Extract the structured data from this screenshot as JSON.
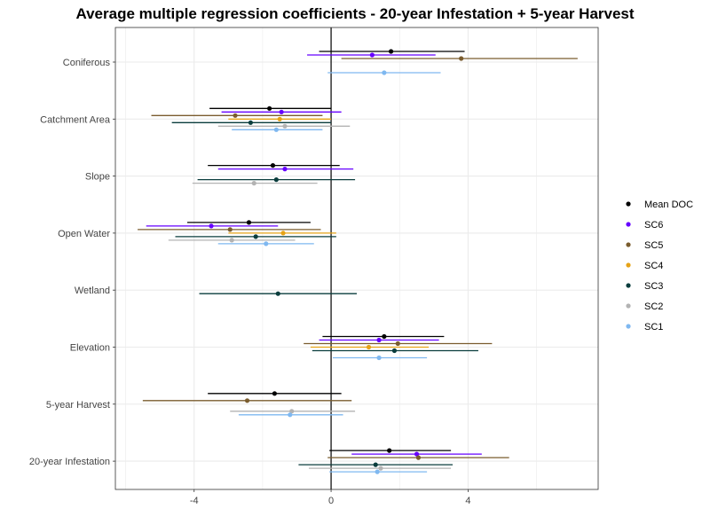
{
  "chart_data": {
    "type": "scatter",
    "title": "Average multiple regression coefficients - 20-year Infestation + 5-year Harvest",
    "xlabel": "",
    "ylabel": "",
    "xlim": [
      -6.3,
      7.8
    ],
    "x_ticks": [
      -4,
      0,
      4
    ],
    "x_tick_labels": [
      "-4",
      "0",
      "4"
    ],
    "grid": true,
    "legend_position": "right",
    "categories": [
      "Coniferous",
      "Catchment Area",
      "Slope",
      "Open Water",
      "Wetland",
      "Elevation",
      "5-year Harvest",
      "20-year Infestation"
    ],
    "series": [
      {
        "name": "Mean DOC",
        "color": "#000000",
        "points": [
          {
            "category": "Coniferous",
            "estimate": 1.75,
            "low": -0.35,
            "high": 3.9
          },
          {
            "category": "Catchment Area",
            "estimate": -1.8,
            "low": -3.55,
            "high": 0.0
          },
          {
            "category": "Slope",
            "estimate": -1.7,
            "low": -3.6,
            "high": 0.25
          },
          {
            "category": "Open Water",
            "estimate": -2.4,
            "low": -4.2,
            "high": -0.6
          },
          {
            "category": "Elevation",
            "estimate": 1.55,
            "low": -0.25,
            "high": 3.3
          },
          {
            "category": "5-year Harvest",
            "estimate": -1.65,
            "low": -3.6,
            "high": 0.3
          },
          {
            "category": "20-year Infestation",
            "estimate": 1.7,
            "low": -0.05,
            "high": 3.5
          }
        ]
      },
      {
        "name": "SC6",
        "color": "#6600ff",
        "points": [
          {
            "category": "Coniferous",
            "estimate": 1.2,
            "low": -0.7,
            "high": 3.05
          },
          {
            "category": "Catchment Area",
            "estimate": -1.45,
            "low": -3.2,
            "high": 0.3
          },
          {
            "category": "Slope",
            "estimate": -1.35,
            "low": -3.3,
            "high": 0.65
          },
          {
            "category": "Open Water",
            "estimate": -3.5,
            "low": -5.4,
            "high": -1.55
          },
          {
            "category": "Elevation",
            "estimate": 1.4,
            "low": -0.35,
            "high": 3.15
          },
          {
            "category": "20-year Infestation",
            "estimate": 2.5,
            "low": 0.6,
            "high": 4.4
          }
        ]
      },
      {
        "name": "SC5",
        "color": "#7a5c2e",
        "points": [
          {
            "category": "Coniferous",
            "estimate": 3.8,
            "low": 0.3,
            "high": 7.2
          },
          {
            "category": "Catchment Area",
            "estimate": -2.8,
            "low": -5.25,
            "high": -0.25
          },
          {
            "category": "Open Water",
            "estimate": -2.95,
            "low": -5.65,
            "high": -0.3
          },
          {
            "category": "Elevation",
            "estimate": 1.95,
            "low": -0.8,
            "high": 4.7
          },
          {
            "category": "5-year Harvest",
            "estimate": -2.45,
            "low": -5.5,
            "high": 0.6
          },
          {
            "category": "20-year Infestation",
            "estimate": 2.55,
            "low": -0.1,
            "high": 5.2
          }
        ]
      },
      {
        "name": "SC4",
        "color": "#e6a317",
        "points": [
          {
            "category": "Catchment Area",
            "estimate": -1.5,
            "low": -3.0,
            "high": 0.0
          },
          {
            "category": "Open Water",
            "estimate": -1.4,
            "low": -3.0,
            "high": 0.15
          },
          {
            "category": "Elevation",
            "estimate": 1.1,
            "low": -0.6,
            "high": 2.85
          }
        ]
      },
      {
        "name": "SC3",
        "color": "#0a3d3d",
        "points": [
          {
            "category": "Catchment Area",
            "estimate": -2.35,
            "low": -4.65,
            "high": 0.0
          },
          {
            "category": "Slope",
            "estimate": -1.6,
            "low": -3.9,
            "high": 0.7
          },
          {
            "category": "Open Water",
            "estimate": -2.2,
            "low": -4.55,
            "high": 0.15
          },
          {
            "category": "Wetland",
            "estimate": -1.55,
            "low": -3.85,
            "high": 0.75
          },
          {
            "category": "Elevation",
            "estimate": 1.85,
            "low": -0.55,
            "high": 4.3
          },
          {
            "category": "20-year Infestation",
            "estimate": 1.3,
            "low": -0.95,
            "high": 3.55
          }
        ]
      },
      {
        "name": "SC2",
        "color": "#b3b3b3",
        "points": [
          {
            "category": "Catchment Area",
            "estimate": -1.35,
            "low": -3.3,
            "high": 0.55
          },
          {
            "category": "Slope",
            "estimate": -2.25,
            "low": -4.05,
            "high": -0.4
          },
          {
            "category": "Open Water",
            "estimate": -2.9,
            "low": -4.75,
            "high": -1.05
          },
          {
            "category": "5-year Harvest",
            "estimate": -1.15,
            "low": -2.95,
            "high": 0.7
          },
          {
            "category": "20-year Infestation",
            "estimate": 1.45,
            "low": -0.65,
            "high": 3.5
          }
        ]
      },
      {
        "name": "SC1",
        "color": "#7fb8f0",
        "points": [
          {
            "category": "Coniferous",
            "estimate": 1.55,
            "low": -0.1,
            "high": 3.2
          },
          {
            "category": "Catchment Area",
            "estimate": -1.6,
            "low": -2.9,
            "high": -0.25
          },
          {
            "category": "Open Water",
            "estimate": -1.9,
            "low": -3.3,
            "high": -0.5
          },
          {
            "category": "Elevation",
            "estimate": 1.4,
            "low": 0.05,
            "high": 2.8
          },
          {
            "category": "5-year Harvest",
            "estimate": -1.2,
            "low": -2.7,
            "high": 0.35
          },
          {
            "category": "20-year Infestation",
            "estimate": 1.35,
            "low": -0.05,
            "high": 2.8
          }
        ]
      }
    ]
  }
}
